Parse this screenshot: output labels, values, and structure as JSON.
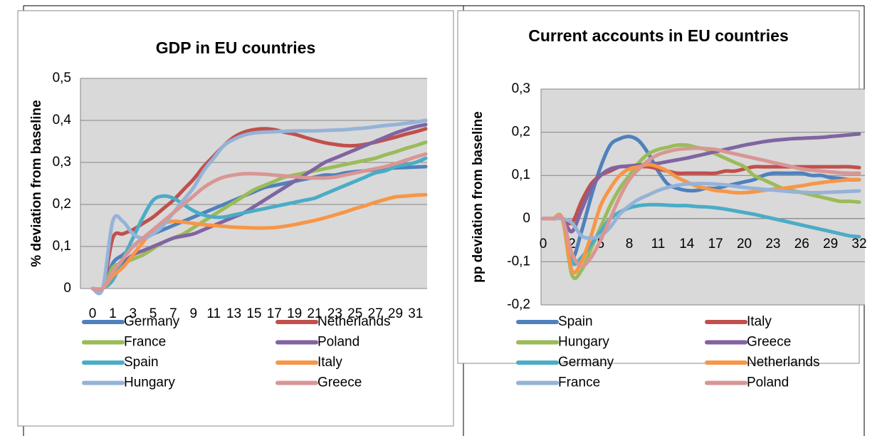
{
  "chart_data": [
    {
      "type": "line",
      "title": "GDP in EU countries",
      "y_label": "% deviation from baseline",
      "categories": [
        "0",
        null,
        "1",
        null,
        "3",
        null,
        "5",
        null,
        "7",
        null,
        "9",
        null,
        "11",
        null,
        "13",
        null,
        "15",
        null,
        "17",
        null,
        "19",
        null,
        "21",
        null,
        "23",
        null,
        "25",
        null,
        "27",
        null,
        "29",
        null,
        "31",
        null
      ],
      "ylim": [
        0,
        0.5
      ],
      "yticks": [
        0,
        {
          "value": 0.1,
          "label": "0,1"
        },
        {
          "value": 0.2,
          "label": "0,2"
        },
        {
          "value": 0.3,
          "label": "0,3"
        },
        {
          "value": 0.4,
          "label": "0,4"
        },
        {
          "value": 0.5,
          "label": "0,5"
        }
      ],
      "grid": true,
      "legend": "bottom",
      "series": [
        {
          "name": "Germany",
          "color": "#4f81bd",
          "values": [
            0,
            0,
            0.06,
            0.08,
            0.1,
            0.12,
            0.13,
            0.14,
            0.15,
            0.16,
            0.17,
            0.18,
            0.19,
            0.2,
            0.21,
            0.22,
            0.23,
            0.24,
            0.245,
            0.25,
            0.255,
            0.26,
            0.265,
            0.27,
            0.27,
            0.275,
            0.278,
            0.28,
            0.283,
            0.285,
            0.287,
            0.288,
            0.289,
            0.29
          ]
        },
        {
          "name": "Netherlands",
          "color": "#c0504d",
          "values": [
            0,
            0,
            0.12,
            0.13,
            0.14,
            0.155,
            0.17,
            0.19,
            0.21,
            0.235,
            0.26,
            0.29,
            0.315,
            0.34,
            0.36,
            0.372,
            0.378,
            0.38,
            0.378,
            0.372,
            0.367,
            0.36,
            0.353,
            0.347,
            0.343,
            0.34,
            0.34,
            0.343,
            0.348,
            0.354,
            0.36,
            0.367,
            0.373,
            0.38
          ]
        },
        {
          "name": "France",
          "color": "#9bbb59",
          "values": [
            0,
            0,
            0.05,
            0.06,
            0.07,
            0.08,
            0.095,
            0.11,
            0.12,
            0.13,
            0.145,
            0.16,
            0.175,
            0.19,
            0.205,
            0.22,
            0.235,
            0.245,
            0.255,
            0.265,
            0.27,
            0.275,
            0.28,
            0.285,
            0.29,
            0.295,
            0.3,
            0.305,
            0.31,
            0.318,
            0.325,
            0.333,
            0.34,
            0.348
          ]
        },
        {
          "name": "Poland",
          "color": "#8064a2",
          "values": [
            0,
            0,
            0.04,
            0.06,
            0.08,
            0.09,
            0.1,
            0.11,
            0.12,
            0.125,
            0.13,
            0.14,
            0.15,
            0.16,
            0.17,
            0.18,
            0.195,
            0.21,
            0.225,
            0.24,
            0.255,
            0.27,
            0.285,
            0.3,
            0.31,
            0.32,
            0.33,
            0.34,
            0.35,
            0.36,
            0.37,
            0.378,
            0.385,
            0.39
          ]
        },
        {
          "name": "Spain",
          "color": "#4bacc6",
          "values": [
            0,
            0,
            0.02,
            0.07,
            0.12,
            0.17,
            0.21,
            0.22,
            0.215,
            0.2,
            0.185,
            0.175,
            0.17,
            0.17,
            0.175,
            0.18,
            0.185,
            0.19,
            0.195,
            0.2,
            0.205,
            0.21,
            0.215,
            0.225,
            0.235,
            0.245,
            0.255,
            0.265,
            0.275,
            0.28,
            0.29,
            0.295,
            0.3,
            0.31
          ]
        },
        {
          "name": "Italy",
          "color": "#f79646",
          "values": [
            0,
            0,
            0.03,
            0.05,
            0.08,
            0.11,
            0.14,
            0.155,
            0.16,
            0.158,
            0.155,
            0.152,
            0.15,
            0.148,
            0.146,
            0.145,
            0.144,
            0.144,
            0.145,
            0.148,
            0.152,
            0.157,
            0.162,
            0.168,
            0.175,
            0.182,
            0.19,
            0.197,
            0.205,
            0.212,
            0.218,
            0.22,
            0.222,
            0.223
          ]
        },
        {
          "name": "Hungary",
          "color": "#95b3d7",
          "values": [
            0,
            0,
            0.16,
            0.16,
            0.13,
            0.12,
            0.13,
            0.15,
            0.18,
            0.21,
            0.24,
            0.28,
            0.31,
            0.34,
            0.355,
            0.365,
            0.37,
            0.372,
            0.373,
            0.374,
            0.375,
            0.375,
            0.375,
            0.376,
            0.377,
            0.378,
            0.38,
            0.382,
            0.385,
            0.388,
            0.39,
            0.393,
            0.396,
            0.4
          ]
        },
        {
          "name": "Greece",
          "color": "#d99694",
          "values": [
            0,
            0,
            0.04,
            0.07,
            0.1,
            0.12,
            0.14,
            0.16,
            0.18,
            0.2,
            0.22,
            0.24,
            0.255,
            0.265,
            0.27,
            0.273,
            0.273,
            0.272,
            0.27,
            0.268,
            0.266,
            0.264,
            0.263,
            0.263,
            0.265,
            0.27,
            0.275,
            0.28,
            0.285,
            0.29,
            0.297,
            0.305,
            0.313,
            0.32
          ]
        }
      ]
    },
    {
      "type": "line",
      "title": "Current accounts in EU  countries",
      "y_label": "pp deviation from baseline",
      "categories": [
        "0",
        null,
        null,
        "2",
        null,
        null,
        "5",
        null,
        null,
        "8",
        null,
        null,
        "11",
        null,
        null,
        "14",
        null,
        null,
        "17",
        null,
        null,
        "20",
        null,
        null,
        "23",
        null,
        null,
        "26",
        null,
        null,
        "29",
        null,
        null,
        "32"
      ],
      "ylim": [
        -0.2,
        0.3
      ],
      "yticks": [
        {
          "value": -0.2,
          "label": "-0,2"
        },
        {
          "value": -0.1,
          "label": "-0,1"
        },
        0,
        {
          "value": 0.1,
          "label": "0,1"
        },
        {
          "value": 0.2,
          "label": "0,2"
        },
        {
          "value": 0.3,
          "label": "0,3"
        }
      ],
      "grid": true,
      "legend": "bottom",
      "series": [
        {
          "name": "Spain",
          "color": "#4f81bd",
          "values": [
            0,
            0,
            0,
            -0.09,
            -0.03,
            0.05,
            0.12,
            0.17,
            0.185,
            0.19,
            0.18,
            0.15,
            0.11,
            0.08,
            0.07,
            0.065,
            0.065,
            0.07,
            0.07,
            0.075,
            0.08,
            0.085,
            0.09,
            0.1,
            0.105,
            0.105,
            0.105,
            0.105,
            0.1,
            0.1,
            0.095,
            0.093,
            0.09,
            0.09
          ]
        },
        {
          "name": "Italy",
          "color": "#c0504d",
          "values": [
            0,
            0,
            0,
            -0.01,
            0.04,
            0.08,
            0.1,
            0.11,
            0.12,
            0.12,
            0.12,
            0.12,
            0.115,
            0.11,
            0.105,
            0.105,
            0.105,
            0.105,
            0.105,
            0.11,
            0.11,
            0.115,
            0.12,
            0.12,
            0.12,
            0.12,
            0.12,
            0.12,
            0.12,
            0.12,
            0.12,
            0.12,
            0.12,
            0.118
          ]
        },
        {
          "name": "Hungary",
          "color": "#9bbb59",
          "values": [
            0,
            0,
            0,
            -0.13,
            -0.12,
            -0.07,
            -0.02,
            0.03,
            0.07,
            0.1,
            0.13,
            0.15,
            0.16,
            0.165,
            0.17,
            0.17,
            0.165,
            0.16,
            0.15,
            0.14,
            0.13,
            0.12,
            0.1,
            0.09,
            0.08,
            0.07,
            0.065,
            0.06,
            0.055,
            0.05,
            0.045,
            0.04,
            0.04,
            0.038
          ]
        },
        {
          "name": "Greece",
          "color": "#8064a2",
          "values": [
            0,
            0,
            0,
            -0.03,
            0.02,
            0.07,
            0.1,
            0.115,
            0.12,
            0.122,
            0.124,
            0.126,
            0.128,
            0.132,
            0.136,
            0.14,
            0.145,
            0.15,
            0.155,
            0.16,
            0.165,
            0.17,
            0.174,
            0.178,
            0.181,
            0.183,
            0.185,
            0.186,
            0.187,
            0.188,
            0.19,
            0.192,
            0.194,
            0.196
          ]
        },
        {
          "name": "Germany",
          "color": "#4bacc6",
          "values": [
            0,
            0,
            0,
            -0.1,
            -0.09,
            -0.06,
            -0.03,
            0,
            0.015,
            0.025,
            0.03,
            0.032,
            0.032,
            0.031,
            0.03,
            0.03,
            0.028,
            0.027,
            0.025,
            0.022,
            0.018,
            0.014,
            0.01,
            0.005,
            0,
            -0.005,
            -0.01,
            -0.015,
            -0.02,
            -0.025,
            -0.03,
            -0.035,
            -0.04,
            -0.042
          ]
        },
        {
          "name": "Netherlands",
          "color": "#f79646",
          "values": [
            0,
            0,
            0,
            -0.12,
            -0.1,
            -0.04,
            0.03,
            0.07,
            0.1,
            0.115,
            0.12,
            0.125,
            0.12,
            0.11,
            0.095,
            0.085,
            0.075,
            0.07,
            0.065,
            0.063,
            0.06,
            0.06,
            0.062,
            0.065,
            0.068,
            0.07,
            0.073,
            0.076,
            0.08,
            0.083,
            0.086,
            0.088,
            0.09,
            0.09
          ]
        },
        {
          "name": "France",
          "color": "#95b3d7",
          "values": [
            0,
            0,
            0,
            -0.01,
            -0.04,
            -0.045,
            -0.04,
            -0.02,
            0.01,
            0.03,
            0.045,
            0.055,
            0.065,
            0.072,
            0.077,
            0.08,
            0.081,
            0.081,
            0.08,
            0.078,
            0.075,
            0.072,
            0.07,
            0.068,
            0.066,
            0.064,
            0.062,
            0.061,
            0.06,
            0.06,
            0.061,
            0.062,
            0.063,
            0.064
          ]
        },
        {
          "name": "Poland",
          "color": "#d99694",
          "values": [
            0,
            0,
            0,
            -0.08,
            -0.11,
            -0.09,
            -0.05,
            0,
            0.05,
            0.09,
            0.115,
            0.135,
            0.148,
            0.155,
            0.16,
            0.162,
            0.163,
            0.162,
            0.16,
            0.155,
            0.15,
            0.145,
            0.14,
            0.135,
            0.13,
            0.125,
            0.12,
            0.115,
            0.112,
            0.11,
            0.108,
            0.106,
            0.105,
            0.105
          ]
        }
      ]
    }
  ]
}
